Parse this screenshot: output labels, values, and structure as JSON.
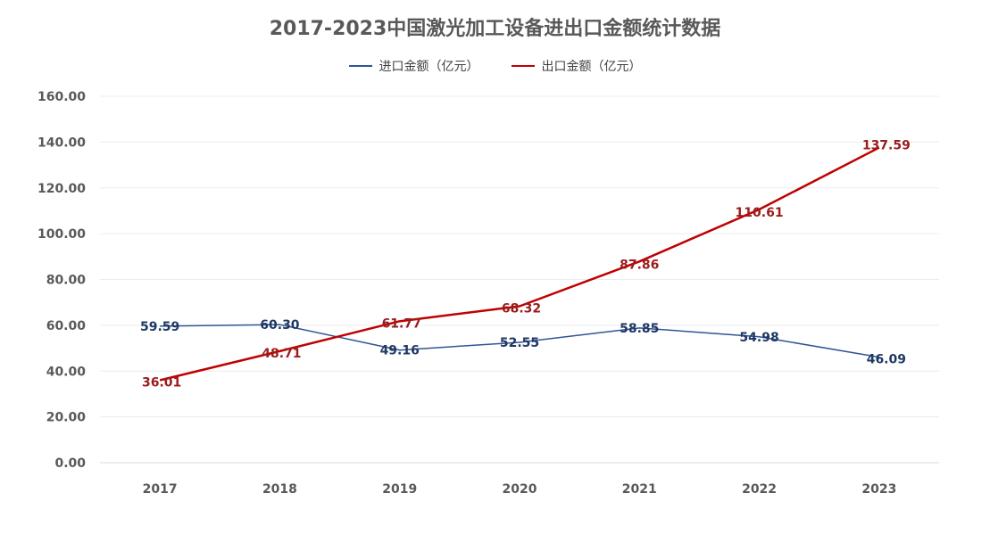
{
  "chart_data": {
    "type": "line",
    "title": "2017-2023中国激光加工设备进出口金额统计数据",
    "categories": [
      "2017",
      "2018",
      "2019",
      "2020",
      "2021",
      "2022",
      "2023"
    ],
    "ylim": [
      0,
      160
    ],
    "yticks": [
      "0.00",
      "20.00",
      "40.00",
      "60.00",
      "80.00",
      "100.00",
      "120.00",
      "140.00",
      "160.00"
    ],
    "grid": true,
    "legend_position": "top",
    "series": [
      {
        "name": "进口金额（亿元）",
        "color": "#2f5597",
        "values": [
          59.59,
          60.3,
          49.16,
          52.55,
          58.85,
          54.98,
          46.09
        ],
        "labels": [
          "59.59",
          "60.30",
          "49.16",
          "52.55",
          "58.85",
          "54.98",
          "46.09"
        ]
      },
      {
        "name": "出口金额（亿元）",
        "color": "#c00000",
        "values": [
          36.01,
          48.71,
          61.77,
          68.32,
          87.86,
          110.61,
          137.59
        ],
        "labels": [
          "36.01",
          "48.71",
          "61.77",
          "68.32",
          "87.86",
          "110.61",
          "137.59"
        ]
      }
    ]
  }
}
